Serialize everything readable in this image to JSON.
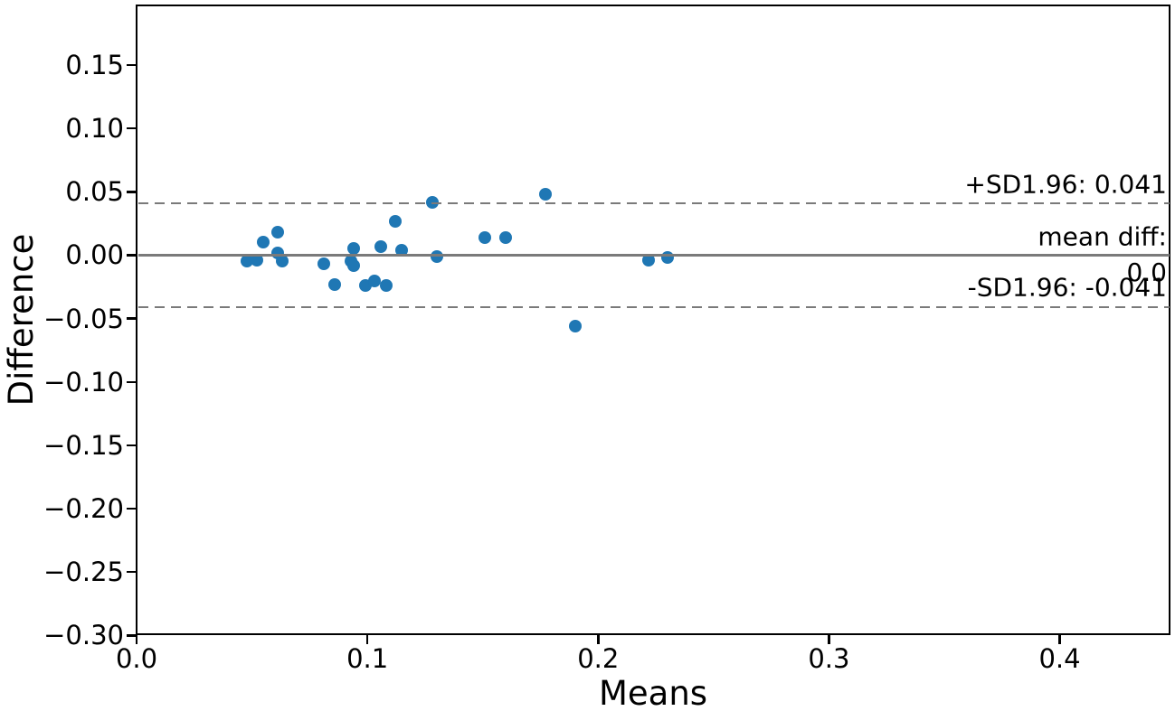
{
  "chart_data": {
    "type": "scatter",
    "title": "",
    "xlabel": "Means",
    "ylabel": "Difference",
    "xlim": [
      0.0,
      0.448
    ],
    "ylim": [
      -0.299,
      0.197
    ],
    "grid": false,
    "legend": null,
    "marker_color": "#1f77b4",
    "reference_line_color": "#7a7a7a",
    "x_ticks": {
      "values": [
        0.0,
        0.1,
        0.2,
        0.3,
        0.4
      ],
      "labels": [
        "0.0",
        "0.1",
        "0.2",
        "0.3",
        "0.4"
      ]
    },
    "y_ticks": {
      "values": [
        0.15,
        0.1,
        0.05,
        0.0,
        -0.05,
        -0.1,
        -0.15,
        -0.2,
        -0.25,
        -0.3
      ],
      "labels": [
        "0.15",
        "0.10",
        "0.05",
        "0.00",
        "−0.05",
        "−0.10",
        "−0.15",
        "−0.20",
        "−0.25",
        "−0.30"
      ]
    },
    "points": [
      [
        0.048,
        -0.005
      ],
      [
        0.052,
        -0.004
      ],
      [
        0.055,
        0.01
      ],
      [
        0.061,
        0.018
      ],
      [
        0.061,
        0.002
      ],
      [
        0.063,
        -0.005
      ],
      [
        0.081,
        -0.007
      ],
      [
        0.086,
        -0.023
      ],
      [
        0.094,
        0.005
      ],
      [
        0.093,
        -0.005
      ],
      [
        0.094,
        -0.008
      ],
      [
        0.099,
        -0.024
      ],
      [
        0.103,
        -0.02
      ],
      [
        0.106,
        0.007
      ],
      [
        0.108,
        -0.024
      ],
      [
        0.112,
        0.027
      ],
      [
        0.115,
        0.004
      ],
      [
        0.128,
        0.042
      ],
      [
        0.13,
        -0.001
      ],
      [
        0.151,
        0.014
      ],
      [
        0.16,
        0.014
      ],
      [
        0.177,
        0.048
      ],
      [
        0.19,
        -0.056
      ],
      [
        0.222,
        -0.004
      ],
      [
        0.23,
        -0.002
      ]
    ],
    "lines": {
      "upper": {
        "value": 0.041,
        "style": "dashed",
        "label": "+SD1.96: 0.041"
      },
      "mean": {
        "value": 0.0,
        "style": "solid",
        "label": "mean diff:",
        "value_label": "0.0"
      },
      "lower": {
        "value": -0.041,
        "style": "dashed",
        "label": "-SD1.96: -0.041"
      }
    }
  }
}
